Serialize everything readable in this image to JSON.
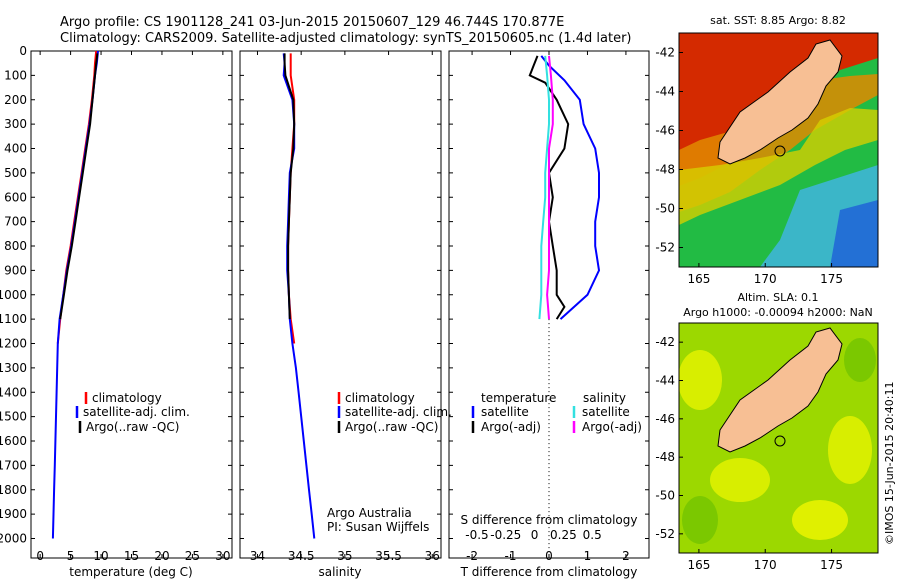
{
  "header": {
    "line1": "Argo profile: CS 1901128_241 03-Jun-2015 20150607_129 46.744S 170.877E",
    "line2": "Climatology: CARS2009. Satellite-adjusted climatology: synTS_20150605.nc (1.4d later)"
  },
  "colors": {
    "climatology": "#ff0000",
    "satellite": "#0000ff",
    "argo": "#000000",
    "satellite_salinity": "#33e0e0",
    "argo_salinity_adj": "#ff00ff",
    "land": "#f7bf94"
  },
  "credit": "©IMOS 15-Jun-2015 20:40:11",
  "depth_axis": {
    "ticks": [
      0,
      100,
      200,
      300,
      400,
      500,
      600,
      700,
      800,
      900,
      1000,
      1100,
      1200,
      1300,
      1400,
      1500,
      1600,
      1700,
      1800,
      1900,
      2000
    ],
    "ylim": [
      0,
      2080
    ],
    "inverted": true
  },
  "chart_data": [
    {
      "type": "line",
      "id": "temperature",
      "xlabel": "temperature (deg C)",
      "xlim": [
        -1.5,
        31.5
      ],
      "xticks": [
        0,
        5,
        10,
        15,
        20,
        25,
        30
      ],
      "legend": {
        "placement": "lower-middle",
        "entries": [
          "climatology",
          "satellite-adj. clim.",
          "Argo(..raw -QC)"
        ]
      },
      "series": [
        {
          "name": "climatology",
          "color": "#ff0000",
          "points": [
            [
              9.2,
              0
            ],
            [
              9.0,
              50
            ],
            [
              8.9,
              100
            ],
            [
              8.5,
              200
            ],
            [
              8.0,
              300
            ],
            [
              7.4,
              400
            ],
            [
              6.8,
              500
            ],
            [
              6.2,
              600
            ],
            [
              5.6,
              700
            ],
            [
              5.0,
              800
            ],
            [
              4.3,
              900
            ],
            [
              3.8,
              1000
            ],
            [
              3.3,
              1100
            ],
            [
              2.9,
              1200
            ]
          ]
        },
        {
          "name": "satellite-adj. clim.",
          "color": "#0000ff",
          "points": [
            [
              9.5,
              0
            ],
            [
              9.3,
              50
            ],
            [
              9.0,
              100
            ],
            [
              8.6,
              200
            ],
            [
              8.1,
              300
            ],
            [
              7.5,
              400
            ],
            [
              6.9,
              500
            ],
            [
              6.3,
              600
            ],
            [
              5.7,
              700
            ],
            [
              5.1,
              800
            ],
            [
              4.4,
              900
            ],
            [
              3.8,
              1000
            ],
            [
              3.2,
              1100
            ],
            [
              2.9,
              1200
            ],
            [
              2.8,
              1300
            ],
            [
              2.7,
              1400
            ],
            [
              2.6,
              1500
            ],
            [
              2.5,
              1600
            ],
            [
              2.4,
              1700
            ],
            [
              2.3,
              1800
            ],
            [
              2.2,
              1900
            ],
            [
              2.1,
              2000
            ]
          ]
        },
        {
          "name": "Argo(..raw -QC)",
          "color": "#000000",
          "points": [
            [
              9.4,
              10
            ],
            [
              9.2,
              50
            ],
            [
              9.0,
              100
            ],
            [
              8.6,
              200
            ],
            [
              8.2,
              300
            ],
            [
              7.6,
              400
            ],
            [
              7.0,
              500
            ],
            [
              6.4,
              600
            ],
            [
              5.8,
              700
            ],
            [
              5.2,
              800
            ],
            [
              4.5,
              900
            ],
            [
              3.9,
              1000
            ],
            [
              3.3,
              1100
            ]
          ]
        }
      ]
    },
    {
      "type": "line",
      "id": "salinity",
      "xlabel": "salinity",
      "xlim": [
        33.8,
        36.1
      ],
      "xticks": [
        34,
        34.5,
        35,
        35.5,
        36
      ],
      "legend": {
        "placement": "lower-right",
        "entries": [
          "climatology",
          "satellite-adj. clim.",
          "Argo(..raw -QC)"
        ]
      },
      "annotation": [
        "Argo Australia",
        "PI: Susan Wijffels"
      ],
      "series": [
        {
          "name": "climatology",
          "color": "#ff0000",
          "points": [
            [
              34.38,
              10
            ],
            [
              34.38,
              50
            ],
            [
              34.38,
              100
            ],
            [
              34.42,
              200
            ],
            [
              34.42,
              300
            ],
            [
              34.4,
              400
            ],
            [
              34.38,
              500
            ],
            [
              34.37,
              600
            ],
            [
              34.36,
              700
            ],
            [
              34.35,
              800
            ],
            [
              34.35,
              900
            ],
            [
              34.36,
              1000
            ],
            [
              34.38,
              1100
            ],
            [
              34.42,
              1200
            ]
          ]
        },
        {
          "name": "satellite-adj. clim.",
          "color": "#0000ff",
          "points": [
            [
              34.3,
              10
            ],
            [
              34.31,
              50
            ],
            [
              34.3,
              100
            ],
            [
              34.4,
              200
            ],
            [
              34.42,
              300
            ],
            [
              34.42,
              400
            ],
            [
              34.37,
              500
            ],
            [
              34.36,
              600
            ],
            [
              34.35,
              700
            ],
            [
              34.34,
              800
            ],
            [
              34.34,
              900
            ],
            [
              34.36,
              1000
            ],
            [
              34.37,
              1100
            ],
            [
              34.4,
              1200
            ],
            [
              34.44,
              1300
            ],
            [
              34.47,
              1400
            ],
            [
              34.5,
              1500
            ],
            [
              34.53,
              1600
            ],
            [
              34.56,
              1700
            ],
            [
              34.59,
              1800
            ],
            [
              34.62,
              1900
            ],
            [
              34.65,
              2000
            ]
          ]
        },
        {
          "name": "Argo(..raw -QC)",
          "color": "#000000",
          "points": [
            [
              34.31,
              10
            ],
            [
              34.31,
              50
            ],
            [
              34.32,
              100
            ],
            [
              34.41,
              200
            ],
            [
              34.42,
              300
            ],
            [
              34.41,
              400
            ],
            [
              34.38,
              500
            ],
            [
              34.37,
              600
            ],
            [
              34.36,
              700
            ],
            [
              34.35,
              800
            ],
            [
              34.35,
              900
            ],
            [
              34.36,
              1000
            ],
            [
              34.37,
              1100
            ]
          ]
        }
      ]
    },
    {
      "type": "line",
      "id": "difference",
      "xlabel": "T difference from climatology",
      "xlabel_top": "S difference from climatology",
      "xlim": [
        -2.6,
        2.6
      ],
      "xticks": [
        -2,
        -1,
        0,
        1,
        2
      ],
      "xticks_s": [
        "-0.5",
        "-0.25",
        "0",
        "0.25",
        "0.5"
      ],
      "legend": {
        "placement": "lower-middle",
        "temperature_title": "temperature",
        "salinity_title": "salinity",
        "entries": [
          "satellite",
          "Argo(-adj)",
          "satellite",
          "Argo(-adj)"
        ]
      },
      "series": [
        {
          "name": "temperature satellite",
          "color": "#0000ff",
          "points": [
            [
              -0.2,
              20
            ],
            [
              0.0,
              60
            ],
            [
              0.4,
              120
            ],
            [
              0.8,
              200
            ],
            [
              0.9,
              300
            ],
            [
              1.2,
              400
            ],
            [
              1.3,
              500
            ],
            [
              1.3,
              600
            ],
            [
              1.2,
              700
            ],
            [
              1.2,
              800
            ],
            [
              1.3,
              900
            ],
            [
              1.0,
              1000
            ],
            [
              0.3,
              1100
            ]
          ]
        },
        {
          "name": "temperature Argo(-adj)",
          "color": "#000000",
          "points": [
            [
              -0.3,
              20
            ],
            [
              -0.4,
              60
            ],
            [
              -0.5,
              100
            ],
            [
              -0.1,
              130
            ],
            [
              0.2,
              200
            ],
            [
              0.5,
              300
            ],
            [
              0.4,
              400
            ],
            [
              0.0,
              500
            ],
            [
              0.1,
              600
            ],
            [
              0.0,
              700
            ],
            [
              0.1,
              800
            ],
            [
              0.2,
              900
            ],
            [
              0.2,
              1000
            ],
            [
              0.4,
              1050
            ],
            [
              0.2,
              1100
            ]
          ]
        },
        {
          "name": "salinity satellite",
          "color": "#33e0e0",
          "points": [
            [
              -0.1,
              20
            ],
            [
              -0.05,
              100
            ],
            [
              0.0,
              200
            ],
            [
              0.0,
              300
            ],
            [
              -0.05,
              400
            ],
            [
              -0.1,
              500
            ],
            [
              -0.1,
              600
            ],
            [
              -0.15,
              700
            ],
            [
              -0.2,
              800
            ],
            [
              -0.2,
              900
            ],
            [
              -0.2,
              1000
            ],
            [
              -0.25,
              1100
            ]
          ]
        },
        {
          "name": "salinity Argo(-adj)",
          "color": "#ff00ff",
          "points": [
            [
              0.0,
              20
            ],
            [
              0.05,
              100
            ],
            [
              0.1,
              200
            ],
            [
              0.1,
              300
            ],
            [
              0.0,
              400
            ],
            [
              0.0,
              500
            ],
            [
              0.0,
              600
            ],
            [
              0.0,
              700
            ],
            [
              0.0,
              800
            ],
            [
              0.0,
              900
            ],
            [
              -0.05,
              1000
            ],
            [
              0.0,
              1100
            ]
          ]
        }
      ]
    },
    {
      "type": "heatmap",
      "id": "sst-map",
      "title": "sat. SST: 8.85 Argo: 8.82",
      "xlim": [
        163.5,
        178.5
      ],
      "ylim": [
        -53,
        -41
      ],
      "xticks": [
        165,
        170,
        175
      ],
      "yticks": [
        -42,
        -44,
        -46,
        -48,
        -50,
        -52
      ],
      "argo_position": [
        170.877,
        -46.744
      ]
    },
    {
      "type": "heatmap",
      "id": "sla-map",
      "title": "Altim. SLA: 0.1",
      "subtitle": "Argo h1000: -0.00094 h2000: NaN",
      "xlim": [
        163.5,
        178.5
      ],
      "ylim": [
        -53,
        -41
      ],
      "xticks": [
        165,
        170,
        175
      ],
      "yticks": [
        -42,
        -44,
        -46,
        -48,
        -50,
        -52
      ],
      "argo_position": [
        170.877,
        -46.744
      ]
    }
  ]
}
